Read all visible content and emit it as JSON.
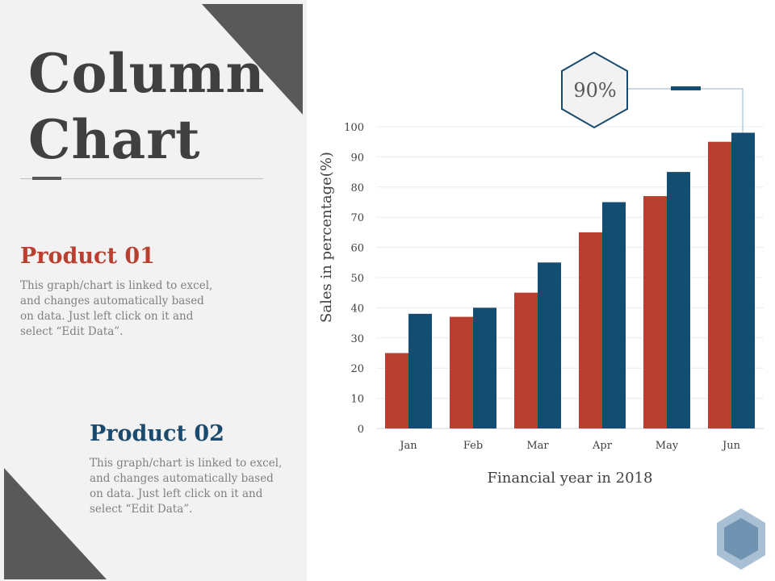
{
  "slide": {
    "title_line1": "Column",
    "title_line2": "Chart",
    "product1": {
      "heading": "Product 01",
      "lines": [
        "This graph/chart is linked to excel,",
        "and changes automatically based",
        "on data. Just left click on it and",
        "select “Edit Data”."
      ]
    },
    "product2": {
      "heading": "Product 02",
      "lines": [
        "This graph/chart is linked to excel,",
        "and changes automatically based",
        "on data. Just left click on it and",
        "select “Edit Data”."
      ]
    },
    "callout": "90%"
  },
  "colors": {
    "product1": "#b94030",
    "product2": "#154d72",
    "dark_gray": "#595959",
    "panel_bg": "#f2f2f2"
  },
  "chart_data": {
    "type": "bar",
    "categories": [
      "Jan",
      "Feb",
      "Mar",
      "Apr",
      "May",
      "Jun"
    ],
    "series": [
      {
        "name": "Product 01",
        "values": [
          25,
          37,
          45,
          65,
          77,
          95
        ]
      },
      {
        "name": "Product 02",
        "values": [
          38,
          40,
          55,
          75,
          85,
          98
        ]
      }
    ],
    "title": "",
    "xlabel": "Financial year in 2018",
    "ylabel": "Sales in percentage(%)",
    "ylim": [
      0,
      100
    ],
    "yticks": [
      0,
      10,
      20,
      30,
      40,
      50,
      60,
      70,
      80,
      90,
      100
    ],
    "grid": true
  }
}
